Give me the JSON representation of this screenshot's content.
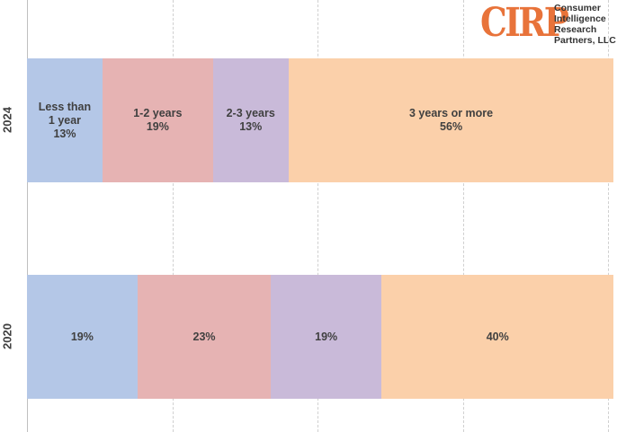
{
  "logo": {
    "mark": "CIRP",
    "lines": [
      "Consumer",
      "Intelligence",
      "Research",
      "Partners, LLC"
    ]
  },
  "chart_data": {
    "type": "stacked-bar-horizontal",
    "categories": [
      "2024",
      "2020"
    ],
    "series": [
      {
        "name": "Less than 1 year",
        "color": "#b4c7e7",
        "values": [
          13,
          19
        ],
        "value_labels": [
          "13%",
          "19%"
        ]
      },
      {
        "name": "1-2 years",
        "color": "#e6b3b3",
        "values": [
          19,
          23
        ],
        "value_labels": [
          "19%",
          "23%"
        ]
      },
      {
        "name": "2-3 years",
        "color": "#c9bad9",
        "values": [
          13,
          19
        ],
        "value_labels": [
          "13%",
          "19%"
        ]
      },
      {
        "name": "3 years or more",
        "color": "#fbd0aa",
        "values": [
          56,
          40
        ],
        "value_labels": [
          "56%",
          "40%"
        ]
      }
    ],
    "show_series_names": [
      true,
      false
    ],
    "xlim": [
      0,
      100
    ],
    "xticks": [
      0,
      25,
      50,
      75,
      100
    ],
    "grid": true
  }
}
